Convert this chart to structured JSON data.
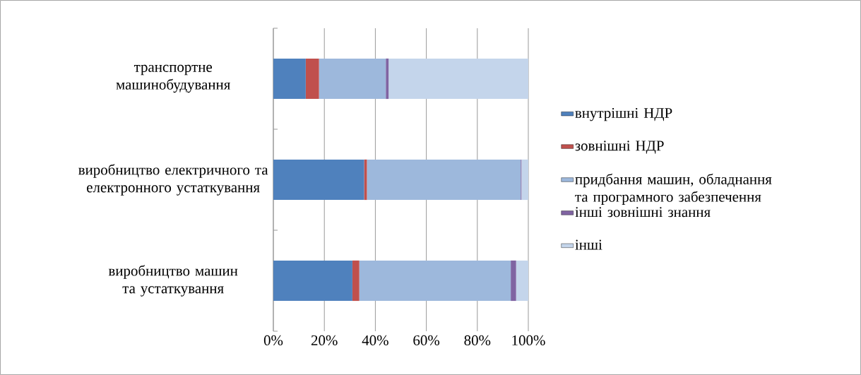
{
  "chart_data": {
    "type": "bar",
    "orientation": "horizontal",
    "stacked": true,
    "categories": [
      "транспортне машинобудування",
      "виробництво електричного та електронного устаткування",
      "виробництво машин та устаткування"
    ],
    "series": [
      {
        "name": "внутрішні НДР",
        "color": "#4f81bd",
        "values": [
          12.7,
          35.6,
          31.0
        ]
      },
      {
        "name": "зовнішні НДР",
        "color": "#c0504d",
        "values": [
          5.2,
          1.1,
          2.7
        ]
      },
      {
        "name": "придбання машин, обладнання та програмного забезпечення",
        "color": "#9db8dc",
        "values": [
          26.2,
          60.3,
          59.4
        ]
      },
      {
        "name": "інші зовнішні знання",
        "color": "#8064a2",
        "values": [
          1.1,
          0.3,
          2.1
        ]
      },
      {
        "name": "інші",
        "color": "#c4d5eb",
        "values": [
          54.8,
          2.7,
          4.8
        ]
      }
    ],
    "xlim": [
      0,
      100
    ],
    "xticks": [
      {
        "value": 0,
        "label": "0%"
      },
      {
        "value": 20,
        "label": "20%"
      },
      {
        "value": 40,
        "label": "40%"
      },
      {
        "value": 60,
        "label": "60%"
      },
      {
        "value": 80,
        "label": "80%"
      },
      {
        "value": 100,
        "label": "100%"
      }
    ],
    "grid": "x",
    "legend": "right"
  }
}
